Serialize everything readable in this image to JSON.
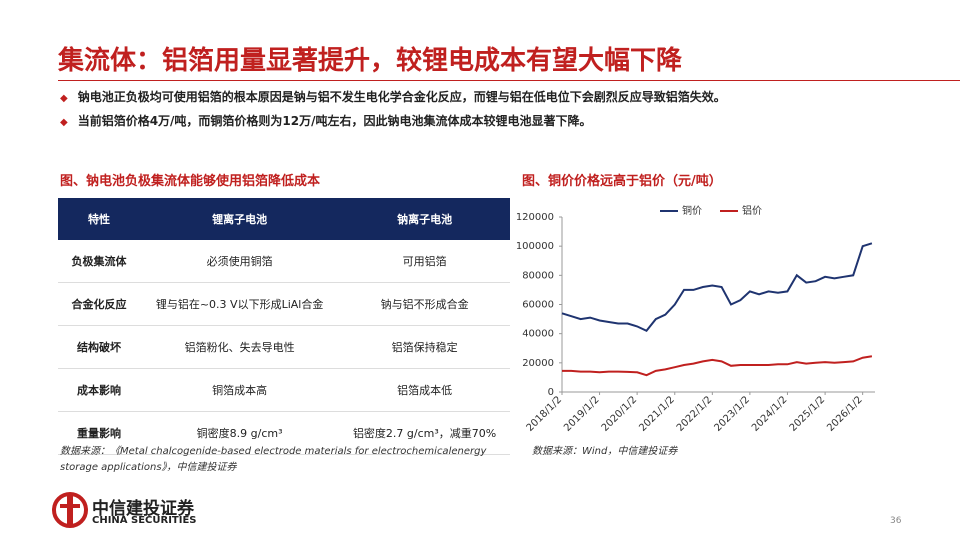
{
  "header": {
    "title": "集流体：铝箔用量显著提升，较锂电成本有望大幅下降"
  },
  "bullets": [
    "钠电池正负极均可使用铝箔的根本原因是钠与铝不发生电化学合金化反应，而锂与铝在低电位下会剧烈反应导致铝箔失效。",
    "当前铝箔价格4万/吨，而铜箔价格则为12万/吨左右，因此钠电池集流体成本较锂电池显著下降。"
  ],
  "table": {
    "caption": "图、钠电池负极集流体能够使用铝箔降低成本",
    "header": [
      "特性",
      "锂离子电池",
      "钠离子电池"
    ],
    "rows": [
      [
        "负极集流体",
        "必须使用铜箔",
        "可用铝箔"
      ],
      [
        "合金化反应",
        "锂与铝在~0.3 V以下形成LiAl合金",
        "钠与铝不形成合金"
      ],
      [
        "结构破坏",
        "铝箔粉化、失去导电性",
        "铝箔保持稳定"
      ],
      [
        "成本影响",
        "铜箔成本高",
        "铝箔成本低"
      ],
      [
        "重量影响",
        "铜密度8.9 g/cm³",
        "铝密度2.7 g/cm³，减重70%"
      ]
    ],
    "source": "数据来源：《Metal chalcogenide-based electrode materials for electrochemicalenergy storage applications》，中信建投证券"
  },
  "chart_data": {
    "type": "line",
    "title": "图、铜价价格远高于铝价（元/吨）",
    "x": [
      "2018/1/2",
      "2018/4/2",
      "2018/7/2",
      "2018/10/2",
      "2019/1/2",
      "2019/4/2",
      "2019/7/2",
      "2019/10/2",
      "2020/1/2",
      "2020/4/2",
      "2020/7/2",
      "2020/10/2",
      "2021/1/2",
      "2021/4/2",
      "2021/7/2",
      "2021/10/2",
      "2022/1/2",
      "2022/4/2",
      "2022/7/2",
      "2022/10/2",
      "2023/1/2",
      "2023/4/2",
      "2023/7/2",
      "2023/10/2",
      "2024/1/2",
      "2024/4/2",
      "2024/7/2",
      "2024/10/2",
      "2025/1/2",
      "2025/4/2",
      "2025/7/2",
      "2025/10/2",
      "2026/1/2",
      "2026/4/2"
    ],
    "series": [
      {
        "name": "铜价",
        "color": "#1f3470",
        "values": [
          54000,
          52000,
          50000,
          51000,
          49000,
          48000,
          47000,
          47000,
          45000,
          42000,
          50000,
          53000,
          60000,
          70000,
          70000,
          72000,
          73000,
          72000,
          60000,
          63000,
          69000,
          67000,
          69000,
          68000,
          69000,
          80000,
          75000,
          76000,
          79000,
          78000,
          79000,
          80000,
          100000,
          102000
        ]
      },
      {
        "name": "铝价",
        "color": "#c0201f",
        "values": [
          14500,
          14500,
          14000,
          14000,
          13500,
          14000,
          14000,
          13800,
          13500,
          11500,
          14500,
          15500,
          17000,
          18500,
          19500,
          21000,
          22000,
          21000,
          18000,
          18500,
          18500,
          18500,
          18500,
          19000,
          19000,
          20500,
          19500,
          20000,
          20500,
          20000,
          20500,
          21000,
          23500,
          24500
        ]
      }
    ],
    "xlim": [
      "2018/1/2",
      "2026/5/2"
    ],
    "xticks": [
      "2018/1/2",
      "2019/1/2",
      "2020/1/2",
      "2021/1/2",
      "2022/1/2",
      "2023/1/2",
      "2024/1/2",
      "2025/1/2",
      "2026/1/2"
    ],
    "ylim": [
      0,
      120000
    ],
    "yticks": [
      0,
      20000,
      40000,
      60000,
      80000,
      100000,
      120000
    ],
    "legend": "top",
    "source": "数据来源：Wind，中信建投证券"
  },
  "footer": {
    "logo_cn": "中信建投证券",
    "logo_en": "CHINA SECURITIES",
    "page": "36"
  }
}
